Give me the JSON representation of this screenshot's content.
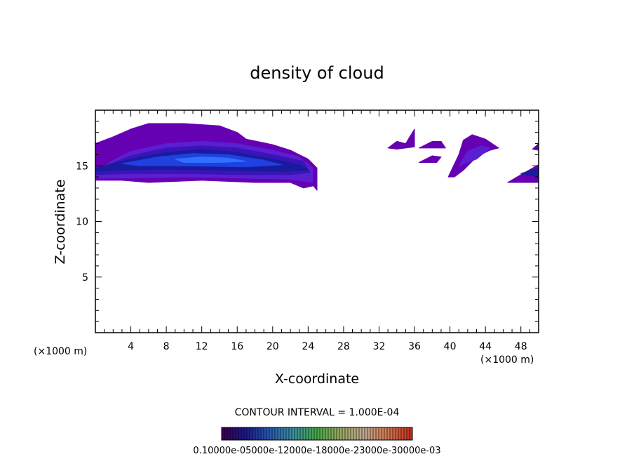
{
  "chart_data": {
    "type": "heatmap",
    "title": "density of cloud",
    "xlabel": "X-coordinate",
    "ylabel": "Z-coordinate",
    "x_unit": "(×1000 m)",
    "x_unit_right": "(×1000 m)",
    "xlim": [
      0,
      50
    ],
    "ylim": [
      0,
      20
    ],
    "xticks": [
      4,
      8,
      12,
      16,
      20,
      24,
      28,
      32,
      36,
      40,
      44,
      48
    ],
    "yticks": [
      5,
      10,
      15
    ],
    "contour_interval_text": "CONTOUR INTERVAL = 1.000E-04",
    "colorbar_labels_text": "0.10000e-05000e-12000e-18000e-23000e-30000e-03",
    "colors": {
      "level1": "#6600b3",
      "level2": "#5a1fd0",
      "level3": "#3a14b8",
      "level4": "#1a1a9e",
      "level5": "#2040e0",
      "level6": "#3070ff"
    },
    "levels": [
      {
        "level": 1,
        "regions": [
          [
            [
              0,
              14.3
            ],
            [
              0,
              17.0
            ],
            [
              2,
              17.6
            ],
            [
              4,
              18.3
            ],
            [
              6,
              18.8
            ],
            [
              10,
              18.8
            ],
            [
              14,
              18.6
            ],
            [
              16,
              18.0
            ],
            [
              17,
              17.4
            ],
            [
              20,
              16.9
            ],
            [
              22,
              16.4
            ],
            [
              24,
              15.6
            ],
            [
              25,
              14.8
            ],
            [
              25,
              12.8
            ],
            [
              24.6,
              13.2
            ],
            [
              23.5,
              13.0
            ],
            [
              22,
              13.5
            ],
            [
              18,
              13.5
            ],
            [
              12,
              13.7
            ],
            [
              6,
              13.5
            ],
            [
              3,
              13.7
            ],
            [
              0,
              13.7
            ]
          ],
          [
            [
              33,
              16.6
            ],
            [
              34,
              17.2
            ],
            [
              35,
              17.0
            ],
            [
              36,
              18.3
            ],
            [
              36,
              16.7
            ],
            [
              34,
              16.5
            ]
          ],
          [
            [
              36.5,
              16.6
            ],
            [
              38,
              17.2
            ],
            [
              39,
              17.2
            ],
            [
              39.5,
              16.6
            ],
            [
              38,
              16.6
            ]
          ],
          [
            [
              36.5,
              15.3
            ],
            [
              38,
              15.9
            ],
            [
              39,
              15.8
            ],
            [
              38.5,
              15.3
            ]
          ],
          [
            [
              39.8,
              14.0
            ],
            [
              41,
              16.0
            ],
            [
              41.5,
              17.3
            ],
            [
              42.5,
              17.8
            ],
            [
              44,
              17.4
            ],
            [
              45.5,
              16.6
            ],
            [
              44.5,
              16.4
            ],
            [
              43,
              15.8
            ],
            [
              41.5,
              14.6
            ],
            [
              40.5,
              14.0
            ]
          ],
          [
            [
              46.5,
              13.5
            ],
            [
              48,
              14.2
            ],
            [
              50,
              15.1
            ],
            [
              50,
              13.5
            ]
          ],
          [
            [
              49.3,
              16.5
            ],
            [
              50,
              17.0
            ],
            [
              50,
              16.4
            ]
          ]
        ]
      },
      {
        "level": 2,
        "regions": [
          [
            [
              0,
              14.4
            ],
            [
              2,
              15.5
            ],
            [
              4,
              16.3
            ],
            [
              8,
              17.0
            ],
            [
              12,
              17.2
            ],
            [
              16,
              17.0
            ],
            [
              20,
              16.4
            ],
            [
              23,
              15.8
            ],
            [
              24.5,
              14.8
            ],
            [
              24.5,
              13.5
            ],
            [
              22,
              13.8
            ],
            [
              16,
              13.9
            ],
            [
              10,
              14.0
            ],
            [
              4,
              13.9
            ],
            [
              0,
              13.9
            ]
          ],
          [
            [
              41,
              15.0
            ],
            [
              42,
              16.3
            ],
            [
              43.5,
              16.8
            ],
            [
              44.5,
              16.6
            ],
            [
              43,
              15.6
            ]
          ]
        ]
      },
      {
        "level": 3,
        "regions": [
          [
            [
              0,
              14.6
            ],
            [
              4,
              15.9
            ],
            [
              8,
              16.6
            ],
            [
              12,
              16.8
            ],
            [
              16,
              16.6
            ],
            [
              20,
              16.0
            ],
            [
              23.5,
              15.4
            ],
            [
              24.2,
              14.4
            ],
            [
              22,
              14.2
            ],
            [
              16,
              14.2
            ],
            [
              10,
              14.3
            ],
            [
              4,
              14.3
            ],
            [
              0,
              14.2
            ]
          ]
        ]
      },
      {
        "level": 4,
        "regions": [
          [
            [
              0,
              14.8
            ],
            [
              4,
              15.6
            ],
            [
              8,
              16.2
            ],
            [
              12,
              16.5
            ],
            [
              16,
              16.2
            ],
            [
              20,
              15.6
            ],
            [
              23,
              15.1
            ],
            [
              24,
              14.6
            ],
            [
              21,
              14.5
            ],
            [
              15,
              14.6
            ],
            [
              8,
              14.7
            ],
            [
              2,
              14.6
            ],
            [
              0,
              14.5
            ]
          ],
          [
            [
              48,
              14.3
            ],
            [
              50,
              14.8
            ],
            [
              50,
              14.0
            ]
          ]
        ]
      },
      {
        "level": 5,
        "regions": [
          [
            [
              3,
              15.2
            ],
            [
              7,
              15.8
            ],
            [
              11,
              16.1
            ],
            [
              15,
              16.0
            ],
            [
              19,
              15.5
            ],
            [
              21,
              15.1
            ],
            [
              17,
              14.9
            ],
            [
              10,
              15.0
            ],
            [
              5,
              15.0
            ]
          ]
        ]
      },
      {
        "level": 6,
        "regions": [
          [
            [
              9,
              15.6
            ],
            [
              12,
              15.8
            ],
            [
              15,
              15.7
            ],
            [
              17,
              15.4
            ],
            [
              14,
              15.3
            ],
            [
              10,
              15.3
            ]
          ]
        ]
      }
    ],
    "colorbar": {
      "stops": [
        "#3a0050",
        "#1a1a8a",
        "#2a5ab0",
        "#3a90a0",
        "#48a848",
        "#98a860",
        "#c0a890",
        "#d07850",
        "#c03020"
      ]
    }
  }
}
